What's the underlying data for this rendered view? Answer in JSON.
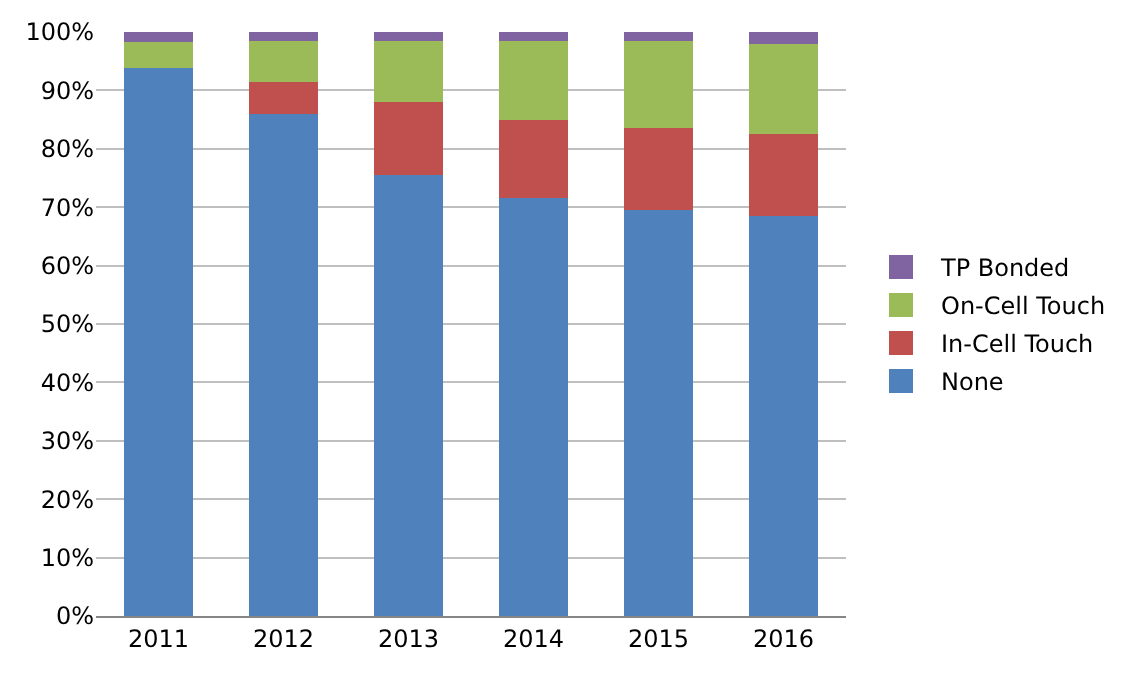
{
  "chart_data": {
    "type": "bar",
    "stacked": true,
    "categories": [
      "2011",
      "2012",
      "2013",
      "2014",
      "2015",
      "2016"
    ],
    "series": [
      {
        "name": "None",
        "color": "#4f81bd",
        "values": [
          93.8,
          86,
          75.5,
          71.5,
          69.5,
          68.5
        ]
      },
      {
        "name": "In-Cell Touch",
        "color": "#c0504d",
        "values": [
          0,
          5.5,
          12.5,
          13.5,
          14,
          14
        ]
      },
      {
        "name": "On-Cell Touch",
        "color": "#9bbb59",
        "values": [
          4.5,
          7,
          10.5,
          13.5,
          15,
          15.5
        ]
      },
      {
        "name": "TP Bonded",
        "color": "#8064a2",
        "values": [
          1.7,
          1.5,
          1.5,
          1.5,
          1.5,
          2
        ]
      }
    ],
    "ylim": [
      0,
      100
    ],
    "yticks": [
      {
        "value": 0,
        "label": "0%"
      },
      {
        "value": 10,
        "label": "10%"
      },
      {
        "value": 20,
        "label": "20%"
      },
      {
        "value": 30,
        "label": "30%"
      },
      {
        "value": 40,
        "label": "40%"
      },
      {
        "value": 50,
        "label": "50%"
      },
      {
        "value": 60,
        "label": "60%"
      },
      {
        "value": 70,
        "label": "70%"
      },
      {
        "value": 80,
        "label": "80%"
      },
      {
        "value": 90,
        "label": "90%"
      },
      {
        "value": 100,
        "label": "100%"
      }
    ],
    "grid": "y",
    "legend": "right"
  }
}
